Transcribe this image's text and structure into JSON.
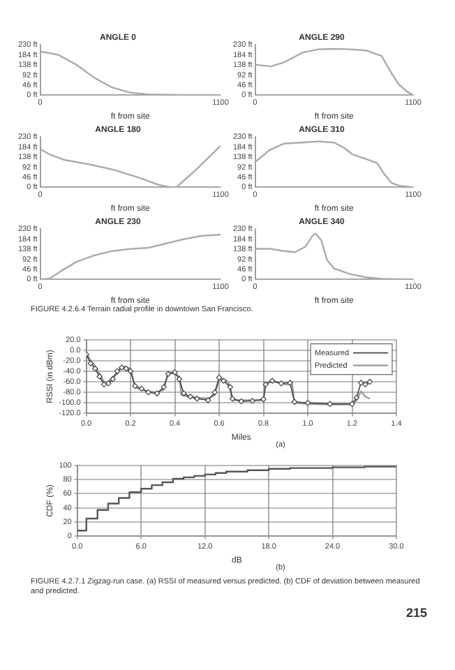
{
  "chart_data": [
    {
      "type": "line",
      "title": "ANGLE 0",
      "xlabel": "ft from site",
      "xlim": [
        0,
        1100
      ],
      "xticks": [
        0,
        1100
      ],
      "ylim": [
        0,
        230
      ],
      "yticks": [
        {
          "value": 0,
          "label": "0 ft"
        },
        {
          "value": 46,
          "label": "46 ft"
        },
        {
          "value": 92,
          "label": "92 ft"
        },
        {
          "value": 138,
          "label": "138 ft"
        },
        {
          "value": 184,
          "label": "184 ft"
        },
        {
          "value": 230,
          "label": "230 ft"
        }
      ],
      "grid": false,
      "legend": false,
      "x": [
        0,
        110,
        220,
        330,
        440,
        550,
        660,
        770,
        880,
        1100
      ],
      "series": [
        {
          "color": "#aaaaaa",
          "values": [
            200,
            185,
            140,
            80,
            35,
            12,
            4,
            2,
            1,
            0
          ]
        }
      ]
    },
    {
      "type": "line",
      "title": "ANGLE 290",
      "xlabel": "ft from site",
      "xlim": [
        0,
        1100
      ],
      "xticks": [
        0,
        1100
      ],
      "ylim": [
        0,
        230
      ],
      "yticks": [
        {
          "value": 0,
          "label": "0 ft"
        },
        {
          "value": 46,
          "label": "46 ft"
        },
        {
          "value": 92,
          "label": "92 ft"
        },
        {
          "value": 138,
          "label": "138 ft"
        },
        {
          "value": 184,
          "label": "184 ft"
        },
        {
          "value": 230,
          "label": "230 ft"
        }
      ],
      "grid": false,
      "legend": false,
      "x": [
        0,
        110,
        200,
        330,
        440,
        550,
        660,
        770,
        880,
        950,
        1000,
        1050,
        1100
      ],
      "series": [
        {
          "color": "#aaaaaa",
          "values": [
            140,
            132,
            150,
            195,
            210,
            212,
            210,
            205,
            180,
            100,
            50,
            20,
            0
          ]
        }
      ]
    },
    {
      "type": "line",
      "title": "ANGLE 180",
      "xlabel": "ft from site",
      "xlim": [
        0,
        1100
      ],
      "xticks": [
        0,
        1100
      ],
      "ylim": [
        0,
        230
      ],
      "yticks": [
        {
          "value": 0,
          "label": "0 ft"
        },
        {
          "value": 46,
          "label": "46 ft"
        },
        {
          "value": 92,
          "label": "92 ft"
        },
        {
          "value": 138,
          "label": "138 ft"
        },
        {
          "value": 184,
          "label": "184 ft"
        },
        {
          "value": 230,
          "label": "230 ft"
        }
      ],
      "grid": false,
      "legend": false,
      "x": [
        0,
        60,
        150,
        300,
        450,
        600,
        720,
        800,
        830,
        950,
        1100
      ],
      "series": [
        {
          "color": "#aaaaaa",
          "values": [
            175,
            150,
            125,
            105,
            80,
            45,
            12,
            0,
            0,
            80,
            190
          ]
        }
      ]
    },
    {
      "type": "line",
      "title": "ANGLE 310",
      "xlabel": "ft from site",
      "xlim": [
        0,
        1100
      ],
      "xticks": [
        0,
        1100
      ],
      "ylim": [
        0,
        230
      ],
      "yticks": [
        {
          "value": 0,
          "label": "0 ft"
        },
        {
          "value": 46,
          "label": "46 ft"
        },
        {
          "value": 92,
          "label": "92 ft"
        },
        {
          "value": 138,
          "label": "138 ft"
        },
        {
          "value": 184,
          "label": "184 ft"
        },
        {
          "value": 230,
          "label": "230 ft"
        }
      ],
      "grid": false,
      "legend": false,
      "x": [
        0,
        100,
        200,
        330,
        440,
        550,
        620,
        680,
        770,
        850,
        900,
        950,
        1000,
        1100
      ],
      "series": [
        {
          "color": "#aaaaaa",
          "values": [
            115,
            170,
            200,
            205,
            210,
            205,
            180,
            150,
            130,
            110,
            60,
            20,
            8,
            0
          ]
        }
      ]
    },
    {
      "type": "line",
      "title": "ANGLE 230",
      "xlabel": "ft from site",
      "xlim": [
        0,
        1100
      ],
      "xticks": [
        0,
        1100
      ],
      "ylim": [
        0,
        230
      ],
      "yticks": [
        {
          "value": 0,
          "label": "0 ft"
        },
        {
          "value": 46,
          "label": "46 ft"
        },
        {
          "value": 92,
          "label": "92 ft"
        },
        {
          "value": 138,
          "label": "138 ft"
        },
        {
          "value": 184,
          "label": "184 ft"
        },
        {
          "value": 230,
          "label": "230 ft"
        }
      ],
      "grid": false,
      "legend": false,
      "x": [
        0,
        60,
        130,
        220,
        330,
        440,
        550,
        660,
        770,
        880,
        990,
        1100
      ],
      "series": [
        {
          "color": "#aaaaaa",
          "values": [
            0,
            5,
            40,
            80,
            110,
            130,
            140,
            145,
            165,
            185,
            200,
            205
          ]
        }
      ]
    },
    {
      "type": "line",
      "title": "ANGLE 340",
      "xlabel": "ft from site",
      "xlim": [
        0,
        1100
      ],
      "xticks": [
        0,
        1100
      ],
      "ylim": [
        0,
        230
      ],
      "yticks": [
        {
          "value": 0,
          "label": "0 ft"
        },
        {
          "value": 46,
          "label": "46 ft"
        },
        {
          "value": 92,
          "label": "92 ft"
        },
        {
          "value": 138,
          "label": "138 ft"
        },
        {
          "value": 184,
          "label": "184 ft"
        },
        {
          "value": 230,
          "label": "230 ft"
        }
      ],
      "grid": false,
      "legend": false,
      "x": [
        0,
        110,
        200,
        280,
        350,
        400,
        420,
        460,
        500,
        550,
        660,
        770,
        880,
        1100
      ],
      "series": [
        {
          "color": "#aaaaaa",
          "values": [
            140,
            140,
            130,
            125,
            150,
            200,
            210,
            180,
            90,
            50,
            25,
            10,
            3,
            0
          ]
        }
      ],
      "annotations": [
        "FIGURE 4.2.6.4 Terrain radial profile in downtown San Francisco."
      ]
    },
    {
      "type": "line",
      "xlabel": "Miles",
      "ylabel": "RSSI (in dBm)",
      "xlim": [
        0,
        1.4
      ],
      "xticks": [
        {
          "value": 0,
          "label": "0.0"
        },
        0.2,
        0.4,
        0.6,
        0.8,
        {
          "value": 1,
          "label": "1.0"
        },
        1.2,
        1.4
      ],
      "ylim": [
        -120,
        20
      ],
      "yticks": [
        {
          "value": -120,
          "label": "-120.0"
        },
        {
          "value": -100,
          "label": "-100.0"
        },
        {
          "value": -80,
          "label": "-80.0"
        },
        {
          "value": -60,
          "label": "-60.0"
        },
        {
          "value": -40,
          "label": "-40.0"
        },
        {
          "value": -20,
          "label": "-20.0"
        },
        {
          "value": 0,
          "label": "0.0"
        },
        {
          "value": 20,
          "label": "20.0"
        }
      ],
      "grid": true,
      "legend": "top right",
      "series": [
        {
          "name": "Measured",
          "color": "#444444",
          "marker": "diamond",
          "x": [
            0,
            0.02,
            0.04,
            0.06,
            0.08,
            0.1,
            0.12,
            0.14,
            0.16,
            0.18,
            0.2,
            0.22,
            0.25,
            0.28,
            0.32,
            0.35,
            0.37,
            0.4,
            0.42,
            0.44,
            0.47,
            0.5,
            0.55,
            0.58,
            0.6,
            0.62,
            0.65,
            0.66,
            0.7,
            0.75,
            0.8,
            0.81,
            0.84,
            0.88,
            0.92,
            0.94,
            1,
            1.1,
            1.2,
            1.22,
            1.24,
            1.26,
            1.28
          ],
          "values": [
            -8,
            -25,
            -35,
            -50,
            -65,
            -63,
            -55,
            -40,
            -33,
            -35,
            -40,
            -68,
            -73,
            -80,
            -82,
            -70,
            -45,
            -42,
            -55,
            -82,
            -88,
            -92,
            -95,
            -80,
            -52,
            -58,
            -70,
            -92,
            -97,
            -96,
            -93,
            -65,
            -58,
            -63,
            -62,
            -98,
            -100,
            -102,
            -102,
            -90,
            -62,
            -65,
            -60
          ]
        },
        {
          "name": "Predicted",
          "color": "#999999",
          "marker": "none",
          "x": [
            0,
            0.02,
            0.04,
            0.06,
            0.08,
            0.1,
            0.12,
            0.14,
            0.16,
            0.18,
            0.2,
            0.22,
            0.25,
            0.28,
            0.32,
            0.35,
            0.37,
            0.4,
            0.42,
            0.43,
            0.46,
            0.5,
            0.55,
            0.58,
            0.6,
            0.62,
            0.64,
            0.66,
            0.7,
            0.75,
            0.8,
            0.81,
            0.85,
            0.9,
            0.93,
            0.94,
            1,
            1.1,
            1.2,
            1.22,
            1.24,
            1.26,
            1.28
          ],
          "values": [
            -5,
            -20,
            -30,
            -45,
            -60,
            -60,
            -50,
            -45,
            -30,
            -32,
            -35,
            -70,
            -75,
            -78,
            -80,
            -75,
            -42,
            -45,
            -50,
            -85,
            -88,
            -90,
            -92,
            -85,
            -55,
            -55,
            -60,
            -95,
            -95,
            -95,
            -95,
            -62,
            -60,
            -65,
            -65,
            -100,
            -102,
            -103,
            -103,
            -95,
            -78,
            -88,
            -92
          ]
        }
      ],
      "annotations": [
        "(a)"
      ]
    },
    {
      "type": "step",
      "xlabel": "dB",
      "ylabel": "CDF (%)",
      "xlim": [
        0,
        30
      ],
      "xticks": [
        {
          "value": 0,
          "label": "0.0"
        },
        {
          "value": 6,
          "label": "6.0"
        },
        {
          "value": 12,
          "label": "12.0"
        },
        {
          "value": 18,
          "label": "18.0"
        },
        {
          "value": 24,
          "label": "24.0"
        },
        {
          "value": 30,
          "label": "30.0"
        }
      ],
      "ylim": [
        0,
        100
      ],
      "yticks": [
        0,
        20,
        40,
        60,
        80,
        100
      ],
      "grid": true,
      "legend": false,
      "x": [
        0,
        0.85,
        1.9,
        2.9,
        3.9,
        4.9,
        6,
        7,
        8,
        9,
        10,
        11,
        12,
        13,
        14,
        16,
        18,
        20,
        24,
        27,
        30
      ],
      "series": [
        {
          "color": "#555555",
          "values": [
            8,
            25,
            37,
            46,
            54,
            62,
            67,
            72,
            76,
            81,
            83,
            85,
            87,
            89,
            91,
            93,
            95,
            96,
            97,
            98,
            99
          ]
        }
      ],
      "annotations": [
        "(b)",
        "FIGURE 4.2.7.1 Zigzag-run case. (a) RSSI of measured versus predicted. (b) CDF of deviation between measured and predicted.",
        "215"
      ]
    }
  ]
}
